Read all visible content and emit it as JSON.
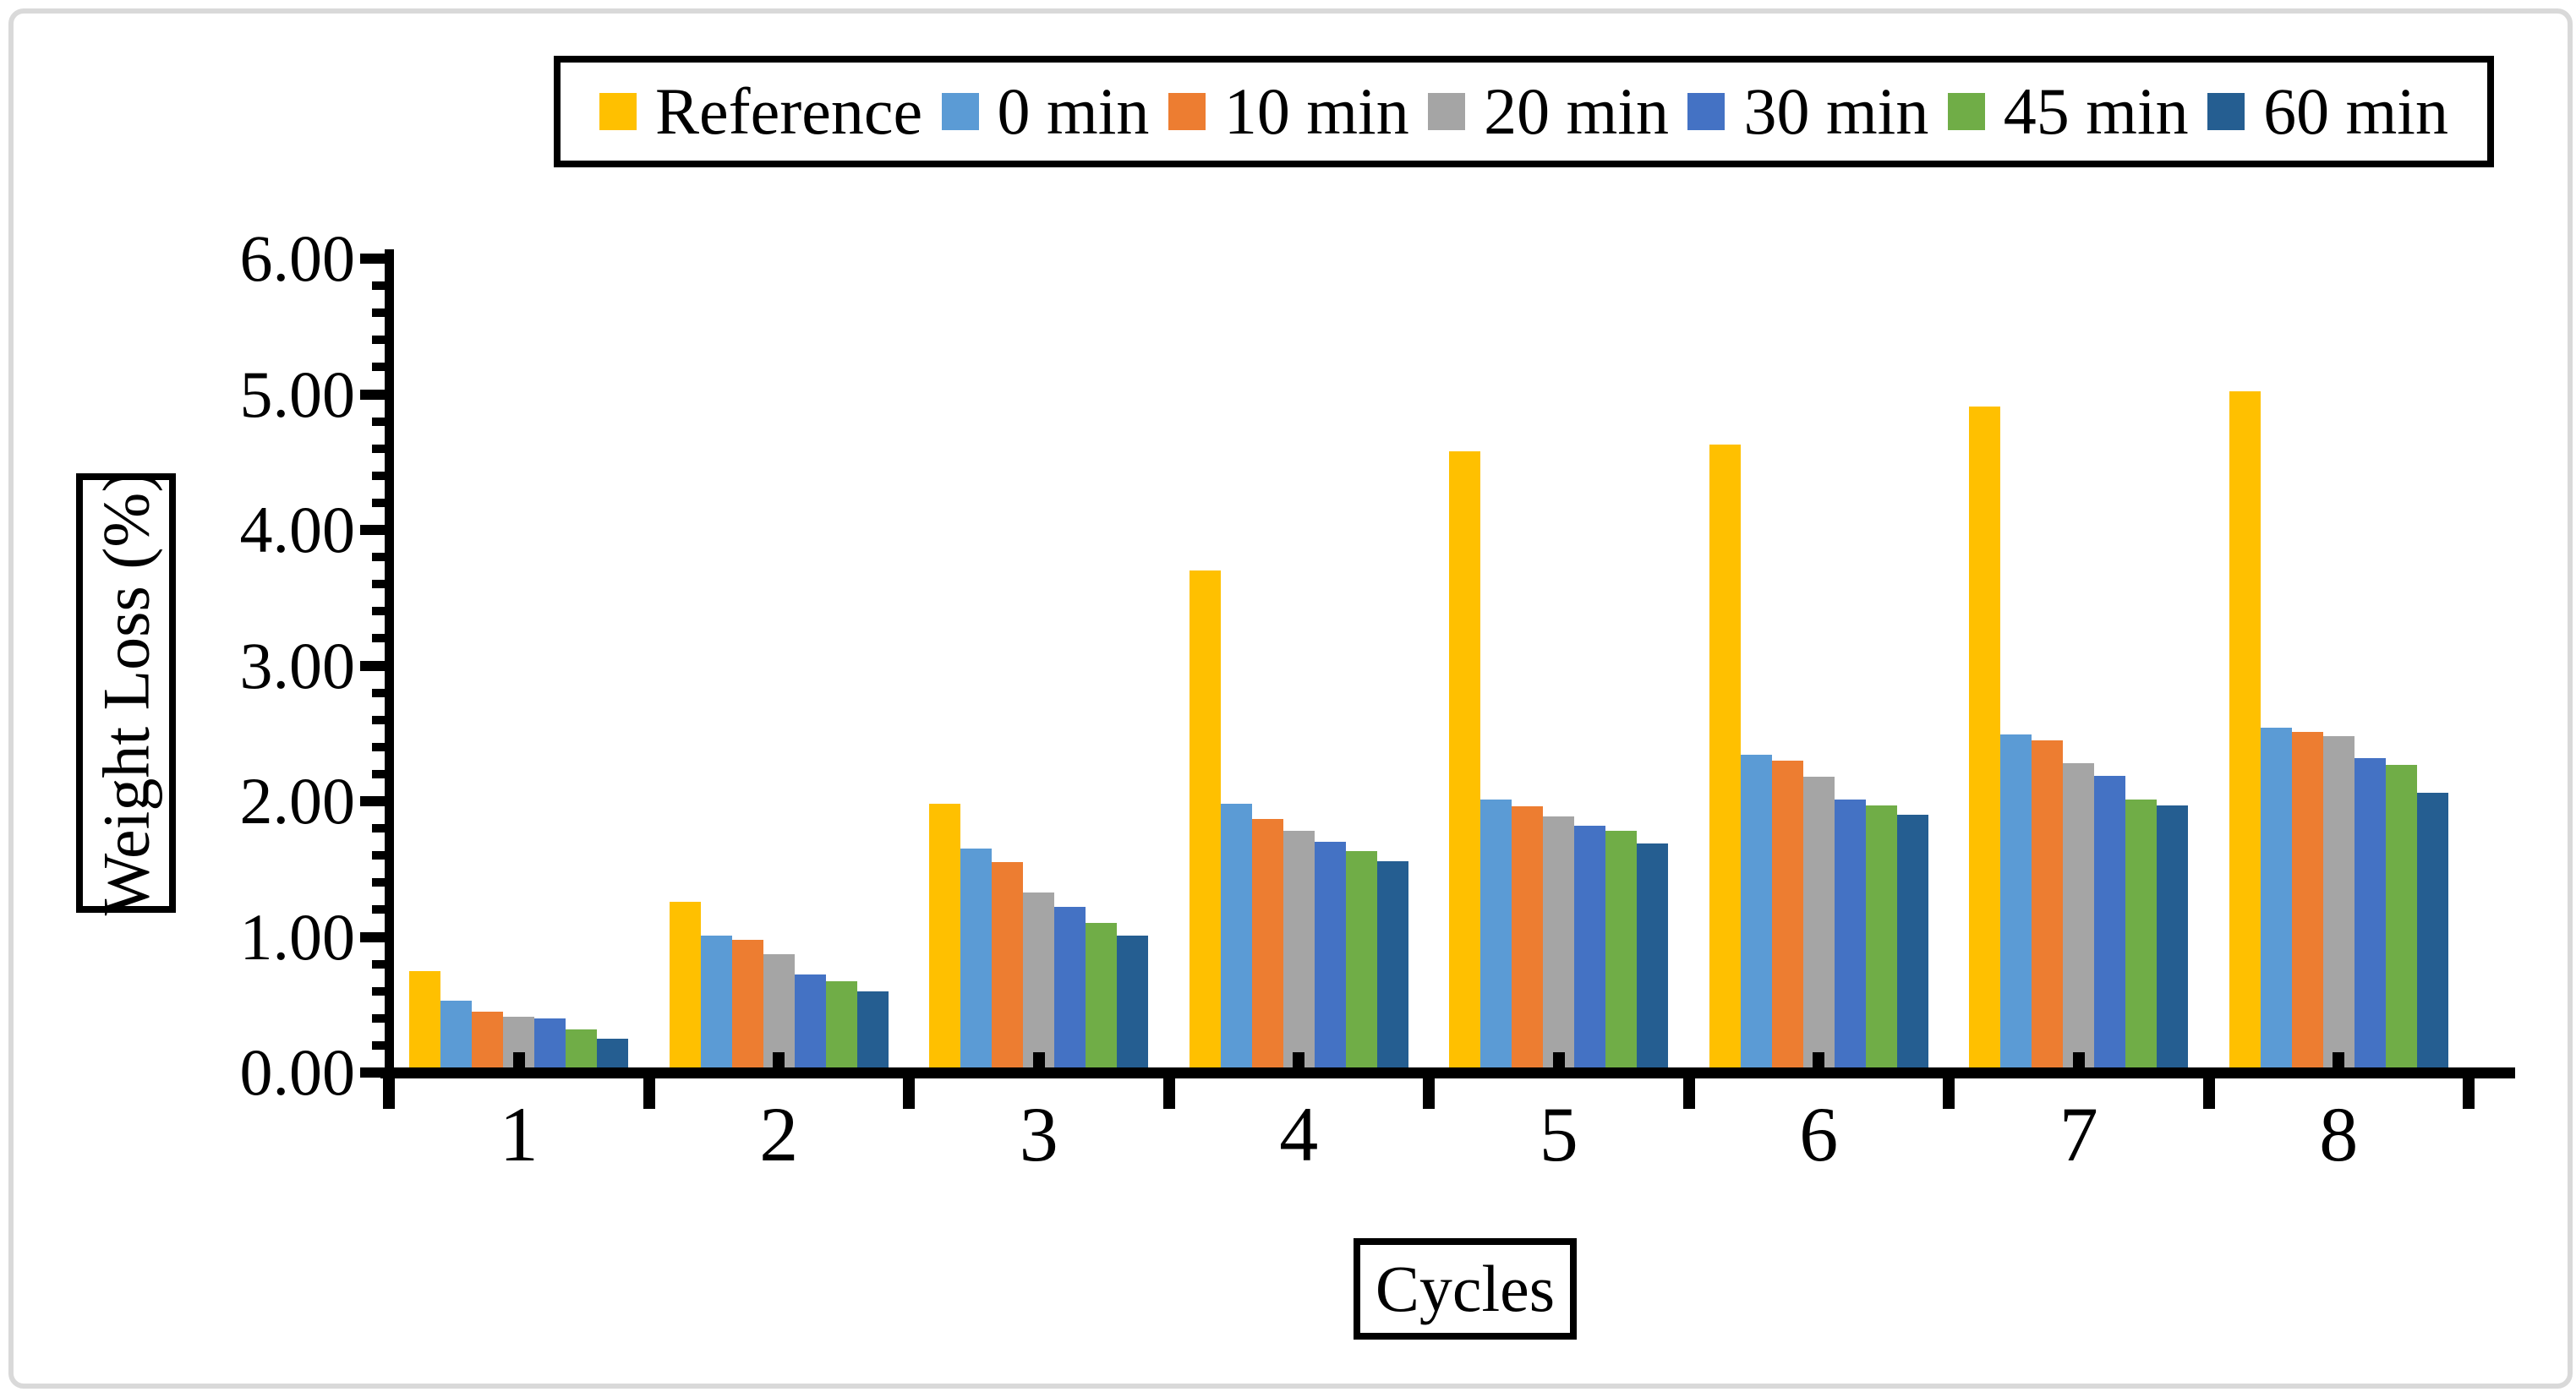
{
  "chart_data": {
    "type": "bar",
    "title": "",
    "xlabel": "Cycles",
    "ylabel": "Weight Loss (%)",
    "categories": [
      "1",
      "2",
      "3",
      "4",
      "5",
      "6",
      "7",
      "8"
    ],
    "series": [
      {
        "name": "Reference",
        "color": "#FFC000",
        "values": [
          0.75,
          1.26,
          1.98,
          3.7,
          4.58,
          4.63,
          4.91,
          5.02
        ]
      },
      {
        "name": "0 min",
        "color": "#5B9BD5",
        "values": [
          0.53,
          1.01,
          1.65,
          1.98,
          2.01,
          2.34,
          2.49,
          2.54
        ]
      },
      {
        "name": "10 min",
        "color": "#ED7D31",
        "values": [
          0.45,
          0.98,
          1.55,
          1.87,
          1.96,
          2.3,
          2.45,
          2.51
        ]
      },
      {
        "name": "20 min",
        "color": "#A5A5A5",
        "values": [
          0.41,
          0.87,
          1.33,
          1.78,
          1.89,
          2.18,
          2.28,
          2.48
        ]
      },
      {
        "name": "30 min",
        "color": "#4472C4",
        "values": [
          0.4,
          0.72,
          1.22,
          1.7,
          1.82,
          2.01,
          2.19,
          2.32
        ]
      },
      {
        "name": "45 min",
        "color": "#70AD47",
        "values": [
          0.32,
          0.67,
          1.1,
          1.63,
          1.78,
          1.97,
          2.01,
          2.27
        ]
      },
      {
        "name": "60 min",
        "color": "#255E91",
        "values": [
          0.25,
          0.6,
          1.01,
          1.56,
          1.69,
          1.9,
          1.97,
          2.06
        ]
      }
    ],
    "y_ticks": [
      "0.00",
      "1.00",
      "2.00",
      "3.00",
      "4.00",
      "5.00",
      "6.00"
    ],
    "ylim": [
      0,
      6
    ],
    "y_minor_step": 0.2,
    "legend_position": "top",
    "grid": false,
    "axis_color": "#000000",
    "figure_border_color": "#D9D9D9"
  }
}
